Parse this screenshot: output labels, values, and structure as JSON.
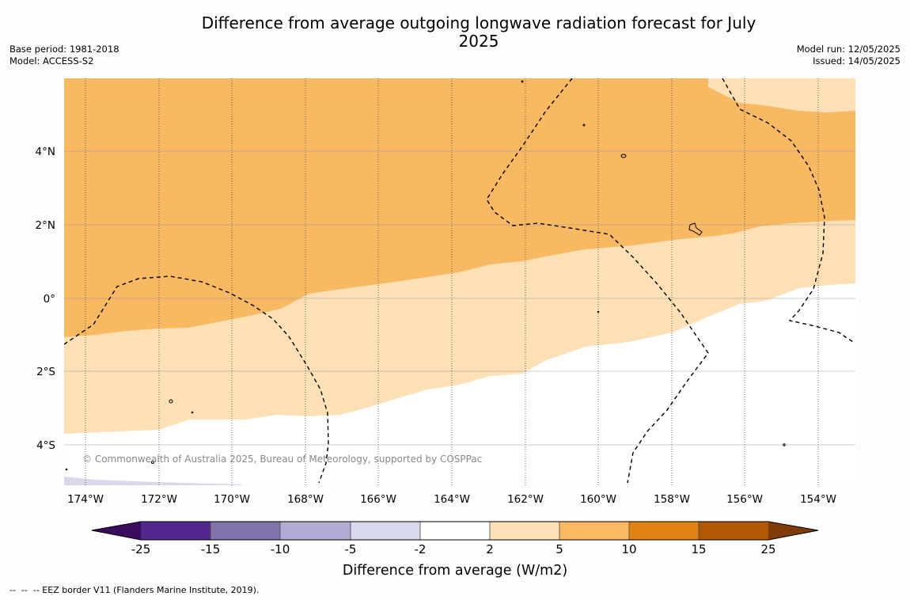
{
  "title": "Difference from average outgoing longwave radiation forecast for July 2025",
  "meta_left": {
    "base_period": "Base period: 1981-2018",
    "model": "Model: ACCESS-S2"
  },
  "meta_right": {
    "model_run": "Model run: 12/05/2025",
    "issued": "Issued: 14/05/2025"
  },
  "map": {
    "x_ticks": [
      "174°W",
      "172°W",
      "170°W",
      "168°W",
      "166°W",
      "164°W",
      "162°W",
      "160°W",
      "158°W",
      "156°W",
      "154°W"
    ],
    "y_ticks": [
      "4°N",
      "2°N",
      "0°",
      "2°S",
      "4°S"
    ],
    "copyright": "© Commonwealth of Australia 2025, Bureau of Meteorology, supported by COSPPac",
    "colors": {
      "band_2_5": "#fde0b6",
      "band_5_10": "#f9b862",
      "band_neg5_neg2": "#d8d8ea"
    }
  },
  "colorbar": {
    "title": "Difference from average (W/m2)",
    "tick_labels": [
      "-25",
      "-15",
      "-10",
      "-5",
      "-2",
      "2",
      "5",
      "10",
      "15",
      "25"
    ],
    "colors": [
      "#3b0b5e",
      "#54278f",
      "#8073ac",
      "#b2abd2",
      "#d8daeb",
      "#ffffff",
      "#fee0b6",
      "#fdb863",
      "#e08214",
      "#b35806",
      "#7f3b08"
    ]
  },
  "footnote": "--  --  -- EEZ border V11 (Flanders Marine Institute, 2019)."
}
